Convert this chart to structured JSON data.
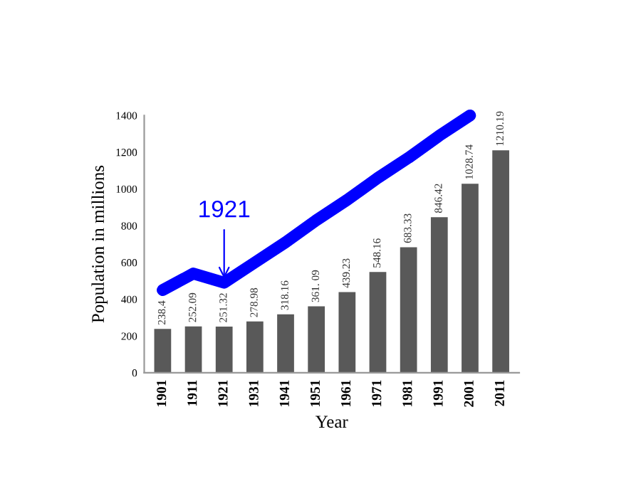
{
  "chart_data": {
    "type": "bar",
    "xlabel": "Year",
    "ylabel": "Population in millions",
    "categories": [
      "1901",
      "1911",
      "1921",
      "1931",
      "1941",
      "1951",
      "1961",
      "1971",
      "1981",
      "1991",
      "2001",
      "2011"
    ],
    "series": [
      {
        "color": "#595959",
        "values": [
          238.4,
          252.09,
          251.32,
          278.98,
          318.16,
          361.09,
          439.23,
          548.16,
          683.33,
          846.42,
          1028.74,
          1210.19
        ],
        "value_labels": [
          "238.4",
          "252.09",
          "251.32",
          "278.98",
          "318.16",
          "361. 09",
          "439.23",
          "548.16",
          "683.33",
          "846.42",
          "1028.74",
          "1210.19"
        ]
      },
      {
        "type": "line",
        "color": "#0000ff",
        "values": [
          450,
          540,
          490,
          600,
          710,
          830,
          940,
          1060,
          1170,
          1290,
          1400,
          null
        ]
      }
    ],
    "annotations": [
      {
        "text": "1921",
        "x": "1921",
        "y": 490
      }
    ],
    "ylim": [
      0,
      1400
    ],
    "yticks": [
      0,
      200,
      400,
      600,
      800,
      1000,
      1200,
      1400
    ],
    "grid": false,
    "legend": false,
    "line_style": "solid",
    "marker": "none"
  }
}
